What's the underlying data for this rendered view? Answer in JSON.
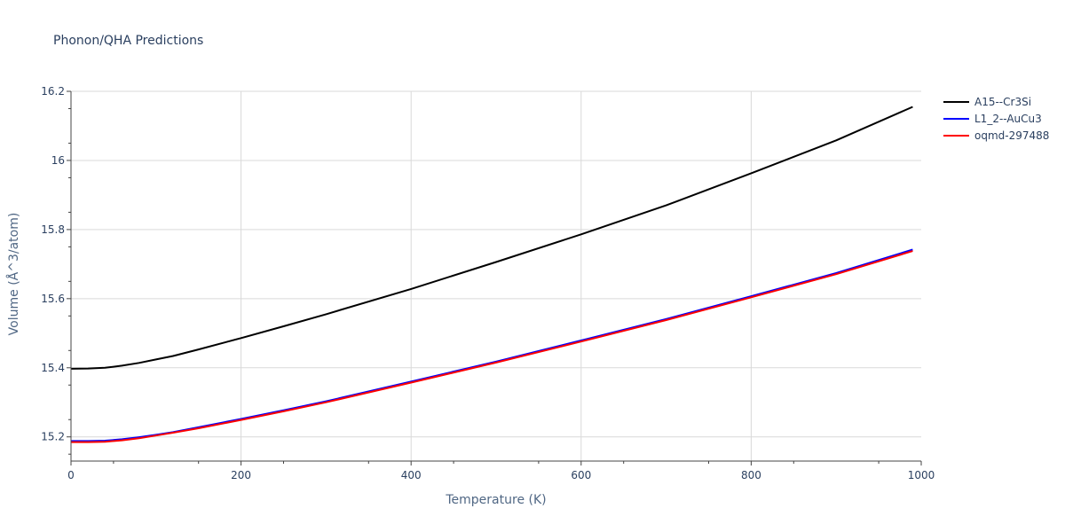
{
  "chart_data": {
    "type": "line",
    "title": "Phonon/QHA Predictions",
    "xlabel": "Temperature (K)",
    "ylabel": "Volume (Å^3/atom)",
    "xlim": [
      0,
      1000
    ],
    "ylim": [
      15.13,
      16.2
    ],
    "xticks": [
      "0",
      "200",
      "400",
      "600",
      "800",
      "1000"
    ],
    "yticks": [
      "15.2",
      "15.4",
      "15.6",
      "15.8",
      "16",
      "16.2"
    ],
    "grid": true,
    "legend_position": "right",
    "series": [
      {
        "name": "A15--Cr3Si",
        "color": "#000000",
        "x": [
          0,
          20,
          40,
          60,
          80,
          100,
          120,
          150,
          200,
          250,
          300,
          400,
          500,
          600,
          700,
          800,
          900,
          990
        ],
        "y": [
          15.397,
          15.398,
          15.4,
          15.406,
          15.414,
          15.424,
          15.434,
          15.453,
          15.486,
          15.52,
          15.555,
          15.628,
          15.706,
          15.786,
          15.87,
          15.963,
          16.058,
          16.155
        ]
      },
      {
        "name": "L1_2--AuCu3",
        "color": "#0000ff",
        "x": [
          0,
          20,
          40,
          60,
          80,
          100,
          120,
          150,
          200,
          250,
          300,
          400,
          500,
          600,
          700,
          800,
          900,
          990
        ],
        "y": [
          15.188,
          15.188,
          15.189,
          15.193,
          15.199,
          15.206,
          15.214,
          15.228,
          15.252,
          15.277,
          15.303,
          15.36,
          15.418,
          15.479,
          15.541,
          15.607,
          15.674,
          15.742
        ]
      },
      {
        "name": "oqmd-297488",
        "color": "#ff0000",
        "x": [
          0,
          20,
          40,
          60,
          80,
          100,
          120,
          150,
          200,
          250,
          300,
          400,
          500,
          600,
          700,
          800,
          900,
          990
        ],
        "y": [
          15.185,
          15.185,
          15.186,
          15.19,
          15.196,
          15.204,
          15.212,
          15.225,
          15.249,
          15.274,
          15.3,
          15.357,
          15.415,
          15.476,
          15.538,
          15.604,
          15.671,
          15.738
        ]
      }
    ]
  }
}
